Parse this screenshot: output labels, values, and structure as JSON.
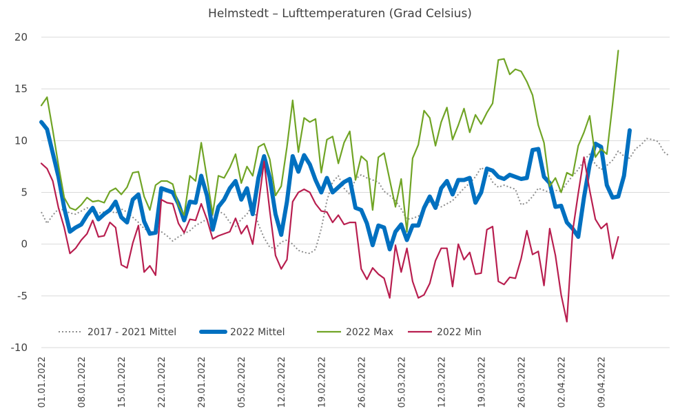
{
  "chart_data": {
    "type": "line",
    "title": "Helmstedt – Lufttemperaturen (Grad Celsius)",
    "xlabel": "",
    "ylabel": "",
    "ylim": [
      -10,
      20
    ],
    "yticks": [
      -10,
      -5,
      0,
      5,
      10,
      15,
      20
    ],
    "y_tick_labels": [
      "-10",
      "-5",
      "0",
      "5",
      "10",
      "15",
      "20"
    ],
    "x_tick_labels": [
      "01.01.2022",
      "08.01.2022",
      "15.01.2022",
      "22.01.2022",
      "29.01.2022",
      "05.02.2022",
      "12.02.2022",
      "19.02.2022",
      "26.02.2022",
      "05.03.2022",
      "12.03.2022",
      "19.03.2022",
      "26.03.2022",
      "02.04.2022",
      "09.04.2022"
    ],
    "x_tick_step_days": 7,
    "x_start": "01.01.2022",
    "grid": true,
    "legend_position": "bottom",
    "series": [
      {
        "name": "2017 - 2021 Mittel",
        "color": "#8c8c8c",
        "style": "dotted",
        "values": [
          3.1,
          2.0,
          2.8,
          3.4,
          3.3,
          3.0,
          2.9,
          3.2,
          3.5,
          3.3,
          3.0,
          3.1,
          3.2,
          3.0,
          3.4,
          3.1,
          2.6,
          2.1,
          1.5,
          1.2,
          1.1,
          1.2,
          0.8,
          0.3,
          0.7,
          1.0,
          1.3,
          1.8,
          2.1,
          2.4,
          2.8,
          3.2,
          2.9,
          2.1,
          1.7,
          2.4,
          2.9,
          3.8,
          1.9,
          0.6,
          -0.3,
          -0.4,
          0.2,
          0.4,
          0.0,
          -0.6,
          -0.8,
          -0.9,
          -0.5,
          1.5,
          4.2,
          6.0,
          6.6,
          5.4,
          4.8,
          6.3,
          6.7,
          6.4,
          6.2,
          6.0,
          5.1,
          4.7,
          4.2,
          3.4,
          2.4,
          2.5,
          2.7,
          3.4,
          4.1,
          4.0,
          3.6,
          3.9,
          4.2,
          4.8,
          5.4,
          5.9,
          6.5,
          7.4,
          7.0,
          6.0,
          5.5,
          5.7,
          5.5,
          5.3,
          3.8,
          4.0,
          4.6,
          5.4,
          5.2,
          5.0,
          5.2,
          5.1,
          5.9,
          6.6,
          7.2,
          8.1,
          8.7,
          7.7,
          7.2,
          7.6,
          8.1,
          9.0,
          8.5,
          8.3,
          9.2,
          9.6,
          10.2,
          10.1,
          9.9,
          8.9,
          8.5
        ]
      },
      {
        "name": "2022 Mittel",
        "color": "#0070c0",
        "style": "solid-thick",
        "values": [
          11.8,
          11.1,
          8.8,
          6.5,
          3.5,
          1.2,
          1.6,
          1.9,
          2.8,
          3.5,
          2.4,
          2.9,
          3.3,
          4.1,
          2.6,
          2.1,
          4.3,
          4.8,
          2.2,
          1.0,
          1.1,
          5.4,
          5.2,
          5.0,
          3.9,
          2.3,
          4.1,
          4.0,
          6.6,
          4.7,
          1.4,
          3.6,
          4.3,
          5.4,
          6.1,
          4.3,
          5.4,
          2.9,
          6.4,
          8.5,
          6.4,
          2.9,
          0.9,
          4.1,
          8.5,
          7.0,
          8.6,
          7.7,
          6.2,
          5.0,
          6.4,
          5.0,
          5.5,
          6.0,
          6.3,
          3.5,
          3.3,
          2.0,
          -0.1,
          1.8,
          1.6,
          -0.5,
          1.2,
          1.9,
          0.4,
          1.8,
          1.8,
          3.5,
          4.6,
          3.5,
          5.4,
          6.1,
          4.8,
          6.2,
          6.2,
          6.4,
          4.0,
          5.0,
          7.3,
          7.1,
          6.5,
          6.3,
          6.7,
          6.5,
          6.3,
          6.4,
          9.1,
          9.2,
          6.5,
          5.9,
          3.6,
          3.7,
          2.1,
          1.5,
          0.7,
          4.5,
          7.7,
          9.7,
          9.4,
          5.7,
          4.5,
          4.6,
          6.6,
          11.0
        ]
      },
      {
        "name": "2022 Max",
        "color": "#70a425",
        "style": "solid",
        "values": [
          13.4,
          14.2,
          11.0,
          7.6,
          4.5,
          3.5,
          3.3,
          3.8,
          4.5,
          4.1,
          4.2,
          4.0,
          5.1,
          5.4,
          4.8,
          5.5,
          6.9,
          7.0,
          4.6,
          3.3,
          5.7,
          6.1,
          6.1,
          5.8,
          3.7,
          2.8,
          6.6,
          6.1,
          9.8,
          6.4,
          2.9,
          6.6,
          6.4,
          7.4,
          8.7,
          5.9,
          7.5,
          6.6,
          9.4,
          9.7,
          8.2,
          4.7,
          5.6,
          9.4,
          13.9,
          8.9,
          12.2,
          11.8,
          12.1,
          6.9,
          10.1,
          10.4,
          7.8,
          9.8,
          10.9,
          6.2,
          8.5,
          8.0,
          3.3,
          8.4,
          8.8,
          6.2,
          3.6,
          6.3,
          1.2,
          8.3,
          9.6,
          12.9,
          12.2,
          9.5,
          11.8,
          13.2,
          10.1,
          11.5,
          13.1,
          10.8,
          12.5,
          11.6,
          12.7,
          13.6,
          17.8,
          17.9,
          16.4,
          16.9,
          16.7,
          15.7,
          14.4,
          11.5,
          9.8,
          5.6,
          6.4,
          5.0,
          6.9,
          6.6,
          9.5,
          10.8,
          12.4,
          8.4,
          9.2,
          8.7,
          13.5,
          18.7
        ]
      },
      {
        "name": "2022 Min",
        "color": "#b81e4f",
        "style": "solid",
        "values": [
          7.8,
          7.3,
          6.1,
          3.5,
          1.6,
          -0.9,
          -0.4,
          0.4,
          1.0,
          2.3,
          0.7,
          0.8,
          2.1,
          1.6,
          -2.0,
          -2.3,
          0.1,
          1.8,
          -2.7,
          -2.1,
          -3.0,
          4.3,
          4.0,
          3.9,
          2.0,
          1.1,
          2.4,
          2.3,
          3.9,
          2.4,
          0.5,
          0.8,
          1.0,
          1.2,
          2.5,
          1.0,
          1.8,
          0.0,
          3.8,
          8.0,
          3.2,
          -1.1,
          -2.4,
          -1.5,
          4.1,
          5.0,
          5.3,
          5.0,
          3.9,
          3.2,
          3.1,
          2.1,
          2.8,
          1.9,
          2.1,
          2.1,
          -2.4,
          -3.4,
          -2.3,
          -2.9,
          -3.3,
          -5.2,
          -0.1,
          -2.7,
          -0.4,
          -3.6,
          -5.2,
          -4.9,
          -3.8,
          -1.6,
          -0.4,
          -0.4,
          -4.1,
          0.0,
          -1.5,
          -0.8,
          -2.9,
          -2.8,
          1.4,
          1.7,
          -3.6,
          -3.9,
          -3.2,
          -3.3,
          -1.4,
          1.3,
          -1.0,
          -0.7,
          -4.0,
          1.5,
          -1.1,
          -4.9,
          -7.5,
          1.2,
          4.9,
          8.4,
          5.2,
          2.4,
          1.5,
          2.0,
          -1.4,
          0.7
        ]
      }
    ]
  }
}
